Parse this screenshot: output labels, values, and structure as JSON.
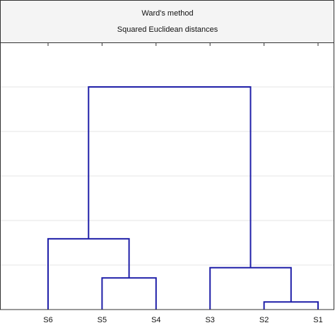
{
  "chart_data": {
    "type": "dendrogram",
    "title": "Ward's method",
    "subtitle": "Squared Euclidean distances",
    "leaves": [
      "S6",
      "S5",
      "S4",
      "S3",
      "S2",
      "S1"
    ],
    "merges": [
      {
        "children": [
          4,
          5
        ],
        "height": 0.17
      },
      {
        "children": [
          1,
          2
        ],
        "height": 0.71
      },
      {
        "children": [
          3,
          6
        ],
        "height": 0.94
      },
      {
        "children": [
          0,
          7
        ],
        "height": 1.59
      },
      {
        "children": [
          9,
          8
        ],
        "height": 5.0
      }
    ],
    "color": "#1f1fa8",
    "ylim": [
      0,
      6
    ],
    "yticks": [
      0,
      1,
      2,
      3,
      4,
      5
    ],
    "grid": true
  }
}
